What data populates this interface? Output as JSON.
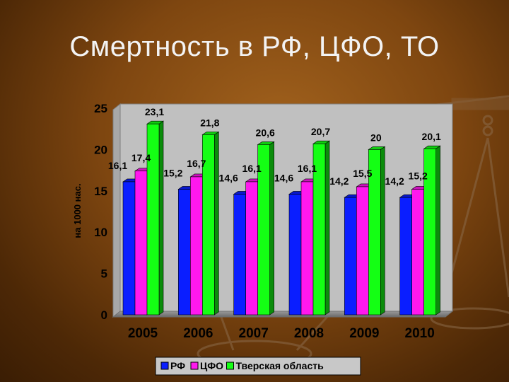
{
  "slide": {
    "title": "Смертность в РФ, ЦФО, ТО"
  },
  "chart_data": {
    "type": "bar",
    "ylabel": "на 1000 нас.",
    "ylim": [
      0,
      25
    ],
    "yticks": [
      0,
      5,
      10,
      15,
      20,
      25
    ],
    "grid": false,
    "legend": "bottom",
    "categories": [
      "2005",
      "2006",
      "2007",
      "2008",
      "2009",
      "2010"
    ],
    "series": [
      {
        "name": "РФ",
        "color": "#0a1eff",
        "values": [
          16.1,
          15.2,
          14.6,
          14.6,
          14.2,
          14.2
        ],
        "labels": [
          "16,1",
          "15,2",
          "14,6",
          "14,6",
          "14,2",
          "14,2"
        ]
      },
      {
        "name": "ЦФО",
        "color": "#ff18ee",
        "values": [
          17.4,
          16.7,
          16.1,
          16.1,
          15.5,
          15.2
        ],
        "labels": [
          "17,4",
          "16,7",
          "16,1",
          "16,1",
          "15,5",
          "15,2"
        ]
      },
      {
        "name": "Тверская область",
        "color": "#14ff14",
        "values": [
          23.1,
          21.8,
          20.6,
          20.7,
          20,
          20.1
        ],
        "labels": [
          "23,1",
          "21,8",
          "20,6",
          "20,7",
          "20",
          "20,1"
        ]
      }
    ]
  }
}
